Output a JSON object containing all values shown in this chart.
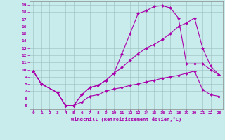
{
  "xlabel": "Windchill (Refroidissement éolien,°C)",
  "bg_color": "#c8ecec",
  "line_color": "#aa00aa",
  "grid_color": "#aacccc",
  "xlim": [
    -0.5,
    23.5
  ],
  "ylim": [
    4.5,
    19.5
  ],
  "xticks": [
    0,
    1,
    2,
    3,
    4,
    5,
    6,
    7,
    8,
    9,
    10,
    11,
    12,
    13,
    14,
    15,
    16,
    17,
    18,
    19,
    20,
    21,
    22,
    23
  ],
  "yticks": [
    5,
    6,
    7,
    8,
    9,
    10,
    11,
    12,
    13,
    14,
    15,
    16,
    17,
    18,
    19
  ],
  "curve1_x": [
    0,
    1,
    3,
    4,
    5,
    6,
    7,
    8,
    9,
    10,
    11,
    12,
    13,
    14,
    15,
    16,
    17,
    18,
    19,
    20,
    21,
    22,
    23
  ],
  "curve1_y": [
    9.8,
    8.0,
    6.8,
    5.0,
    5.0,
    6.5,
    7.5,
    7.8,
    8.5,
    9.5,
    12.2,
    15.0,
    17.8,
    18.2,
    18.8,
    18.9,
    18.6,
    17.2,
    10.8,
    10.8,
    10.8,
    10.0,
    9.3
  ],
  "curve2_x": [
    0,
    1,
    3,
    4,
    5,
    6,
    7,
    8,
    9,
    10,
    11,
    12,
    13,
    14,
    15,
    16,
    17,
    18,
    19,
    20,
    21,
    22,
    23
  ],
  "curve2_y": [
    9.8,
    8.0,
    6.8,
    5.0,
    5.0,
    6.5,
    7.5,
    7.8,
    8.5,
    9.5,
    10.3,
    11.3,
    12.2,
    13.0,
    13.5,
    14.2,
    15.0,
    16.0,
    16.5,
    17.2,
    13.0,
    10.5,
    9.3
  ],
  "curve3_x": [
    0,
    1,
    3,
    4,
    5,
    6,
    7,
    8,
    9,
    10,
    11,
    12,
    13,
    14,
    15,
    16,
    17,
    18,
    19,
    20,
    21,
    22,
    23
  ],
  "curve3_y": [
    9.8,
    8.0,
    6.8,
    5.0,
    5.0,
    5.5,
    6.3,
    6.5,
    7.0,
    7.3,
    7.5,
    7.8,
    8.0,
    8.3,
    8.5,
    8.8,
    9.0,
    9.2,
    9.5,
    9.8,
    7.2,
    6.5,
    6.3
  ]
}
